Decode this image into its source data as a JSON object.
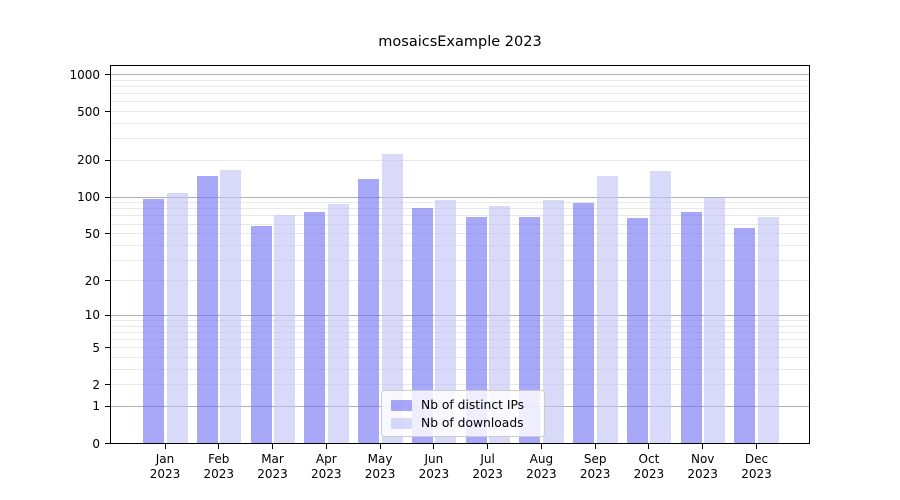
{
  "chart_data": {
    "type": "bar",
    "title": "mosaicsExample 2023",
    "categories": [
      "Jan",
      "Feb",
      "Mar",
      "Apr",
      "May",
      "Jun",
      "Jul",
      "Aug",
      "Sep",
      "Oct",
      "Nov",
      "Dec"
    ],
    "xtick_year": "2023",
    "series": [
      {
        "name": "Nb of distinct IPs",
        "color": "#6e6ef3",
        "alpha": 0.6,
        "values": [
          97,
          150,
          58,
          75,
          140,
          81,
          68,
          68,
          89,
          67,
          76,
          56
        ]
      },
      {
        "name": "Nb of downloads",
        "color": "#c0c0f7",
        "alpha": 0.6,
        "values": [
          108,
          167,
          71,
          87,
          225,
          94,
          85,
          94,
          149,
          165,
          98,
          68
        ]
      }
    ],
    "yscale": "log1p",
    "yticks": [
      0,
      1,
      2,
      5,
      10,
      20,
      50,
      100,
      200,
      500,
      1000
    ],
    "ylim": [
      0,
      1150
    ],
    "grid": true,
    "legend_position": "lower center",
    "grid_major_color": "#b0b0b0",
    "grid_minor_color": "#e8e8e8"
  }
}
